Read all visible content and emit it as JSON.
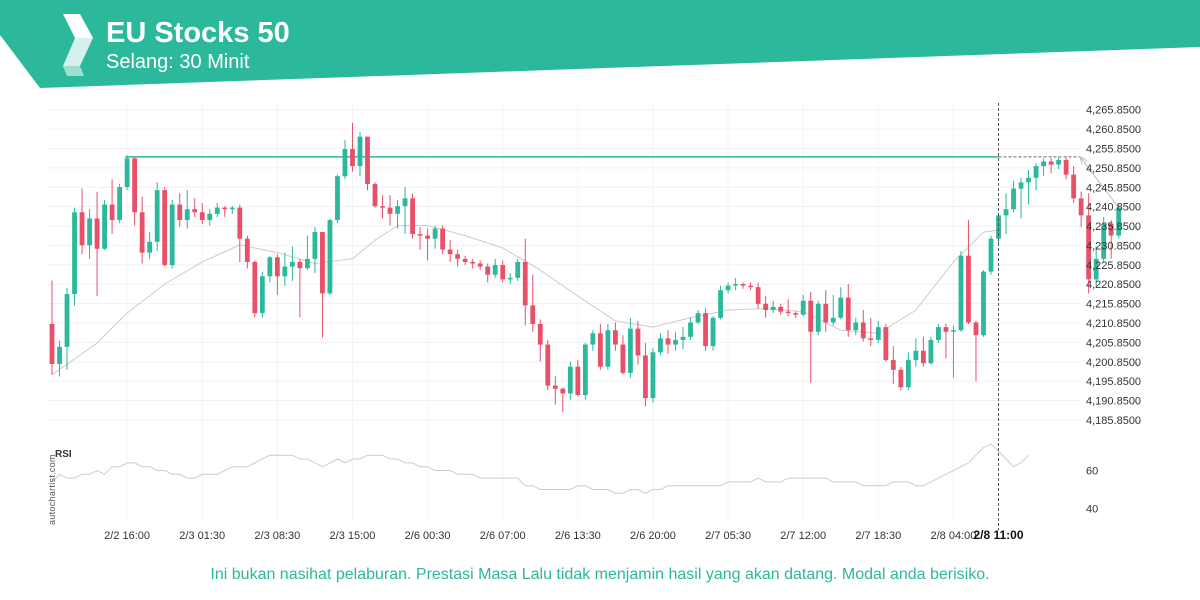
{
  "header": {
    "title": "EU Stocks 50",
    "subtitle": "Selang: 30 Minit",
    "brand_color": "#2bb89b",
    "logo_icon": "autochartist-logo-icon"
  },
  "disclaimer": "Ini bukan nasihat pelaburan. Prestasi Masa Lalu tidak menjamin hasil yang akan datang. Modal anda berisiko.",
  "watermark": "autochartist.com",
  "chart_data": {
    "type": "candlestick",
    "instrument": "EU Stocks 50",
    "interval": "30 Minit",
    "y_ticks": [
      "4,265.8500",
      "4,260.8500",
      "4,255.8500",
      "4,250.8500",
      "4,245.8500",
      "4,240.8500",
      "4,235.8500",
      "4,230.8500",
      "4,225.8500",
      "4,220.8500",
      "4,215.8500",
      "4,210.8500",
      "4,205.8500",
      "4,200.8500",
      "4,195.8500",
      "4,190.8500",
      "4,185.8500"
    ],
    "ylim": [
      4182.5,
      4266.8
    ],
    "x_ticks": [
      "2/2 16:00",
      "2/3 01:30",
      "2/3 08:30",
      "2/3 15:00",
      "2/6 00:30",
      "2/6 07:00",
      "2/6 13:30",
      "2/6 20:00",
      "2/7 05:30",
      "2/7 12:00",
      "2/7 18:30",
      "2/8 04:00"
    ],
    "x_tick_index": [
      10,
      20,
      30,
      40,
      50,
      60,
      70,
      80,
      90,
      100,
      110,
      120
    ],
    "highlight_x_label": "2/8 11:00",
    "highlight_index": 126,
    "resistance_level": 4253.7,
    "resistance_start_index": 10,
    "projection_target": 4253.7,
    "bull_color": "#2bb89b",
    "bear_color": "#e8506a",
    "candles": [
      [
        4210.6,
        4221.8,
        4197.5,
        4200.3
      ],
      [
        4200.3,
        4206.3,
        4197.1,
        4204.7
      ],
      [
        4204.7,
        4219.9,
        4198.8,
        4218.3
      ],
      [
        4218.3,
        4240.6,
        4215.3,
        4239.4
      ],
      [
        4239.4,
        4245.5,
        4228.6,
        4230.9
      ],
      [
        4230.9,
        4240.2,
        4227.4,
        4237.8
      ],
      [
        4237.8,
        4244.7,
        4217.8,
        4230.0
      ],
      [
        4230.0,
        4242.6,
        4229.6,
        4241.4
      ],
      [
        4241.4,
        4247.9,
        4233.8,
        4237.4
      ],
      [
        4237.4,
        4246.7,
        4236.6,
        4245.9
      ],
      [
        4245.9,
        4254.1,
        4245.1,
        4253.3
      ],
      [
        4253.3,
        4253.7,
        4236.0,
        4239.4
      ],
      [
        4239.4,
        4243.4,
        4226.2,
        4229.0
      ],
      [
        4229.0,
        4234.3,
        4227.4,
        4231.8
      ],
      [
        4231.8,
        4247.1,
        4229.4,
        4245.1
      ],
      [
        4245.1,
        4245.9,
        4225.4,
        4225.8
      ],
      [
        4225.8,
        4242.6,
        4224.9,
        4241.4
      ],
      [
        4241.4,
        4244.3,
        4235.6,
        4237.4
      ],
      [
        4237.4,
        4245.1,
        4235.2,
        4240.2
      ],
      [
        4240.2,
        4243.0,
        4238.2,
        4239.4
      ],
      [
        4239.4,
        4241.8,
        4236.4,
        4237.4
      ],
      [
        4237.4,
        4240.2,
        4236.0,
        4239.0
      ],
      [
        4239.0,
        4241.8,
        4238.2,
        4240.6
      ],
      [
        4240.6,
        4241.0,
        4238.2,
        4240.2
      ],
      [
        4240.2,
        4241.0,
        4239.0,
        4240.6
      ],
      [
        4240.6,
        4241.4,
        4226.6,
        4232.6
      ],
      [
        4232.6,
        4233.4,
        4224.9,
        4226.6
      ],
      [
        4226.6,
        4227.0,
        4212.3,
        4213.4
      ],
      [
        4213.4,
        4224.1,
        4212.3,
        4222.9
      ],
      [
        4222.9,
        4228.2,
        4221.3,
        4227.8
      ],
      [
        4227.8,
        4228.6,
        4218.1,
        4222.9
      ],
      [
        4222.9,
        4229.0,
        4220.5,
        4225.4
      ],
      [
        4225.4,
        4230.6,
        4221.7,
        4226.6
      ],
      [
        4226.6,
        4227.4,
        4212.3,
        4225.0
      ],
      [
        4225.0,
        4233.4,
        4224.5,
        4227.4
      ],
      [
        4227.4,
        4235.6,
        4223.7,
        4234.3
      ],
      [
        4234.3,
        4234.3,
        4207.1,
        4218.5
      ],
      [
        4218.5,
        4237.8,
        4218.1,
        4237.4
      ],
      [
        4237.4,
        4249.1,
        4236.6,
        4248.7
      ],
      [
        4248.7,
        4258.0,
        4247.9,
        4255.7
      ],
      [
        4255.7,
        4262.5,
        4249.9,
        4251.3
      ],
      [
        4251.3,
        4260.1,
        4248.7,
        4258.9
      ],
      [
        4258.9,
        4258.9,
        4245.1,
        4246.7
      ],
      [
        4246.7,
        4247.1,
        4240.6,
        4241.0
      ],
      [
        4241.0,
        4243.8,
        4237.8,
        4240.6
      ],
      [
        4240.6,
        4243.8,
        4236.0,
        4239.0
      ],
      [
        4239.0,
        4242.6,
        4235.2,
        4241.0
      ],
      [
        4241.0,
        4245.9,
        4233.9,
        4243.0
      ],
      [
        4243.0,
        4244.3,
        4232.6,
        4233.8
      ],
      [
        4233.8,
        4235.6,
        4229.8,
        4233.4
      ],
      [
        4233.4,
        4235.2,
        4227.0,
        4232.6
      ],
      [
        4232.6,
        4236.0,
        4230.0,
        4235.2
      ],
      [
        4235.2,
        4236.0,
        4228.6,
        4229.8
      ],
      [
        4229.8,
        4232.2,
        4226.6,
        4228.6
      ],
      [
        4228.6,
        4229.8,
        4225.4,
        4227.4
      ],
      [
        4227.4,
        4228.2,
        4225.8,
        4226.6
      ],
      [
        4226.6,
        4227.4,
        4224.9,
        4226.2
      ],
      [
        4226.2,
        4227.0,
        4224.5,
        4225.4
      ],
      [
        4225.4,
        4226.2,
        4221.3,
        4223.3
      ],
      [
        4223.3,
        4227.4,
        4222.5,
        4225.8
      ],
      [
        4225.8,
        4227.0,
        4221.3,
        4222.1
      ],
      [
        4222.1,
        4223.7,
        4220.9,
        4222.5
      ],
      [
        4222.5,
        4227.4,
        4221.7,
        4226.6
      ],
      [
        4226.6,
        4232.6,
        4210.2,
        4215.4
      ],
      [
        4215.4,
        4223.3,
        4208.6,
        4210.6
      ],
      [
        4210.6,
        4211.8,
        4200.9,
        4205.3
      ],
      [
        4205.3,
        4206.5,
        4193.5,
        4194.7
      ],
      [
        4194.7,
        4197.1,
        4189.8,
        4193.9
      ],
      [
        4193.9,
        4194.3,
        4187.8,
        4192.7
      ],
      [
        4192.7,
        4200.9,
        4191.1,
        4199.6
      ],
      [
        4199.6,
        4201.3,
        4191.9,
        4192.3
      ],
      [
        4192.3,
        4205.7,
        4191.1,
        4205.3
      ],
      [
        4205.3,
        4209.0,
        4203.7,
        4208.2
      ],
      [
        4208.2,
        4210.6,
        4198.8,
        4199.6
      ],
      [
        4199.6,
        4210.6,
        4198.8,
        4209.0
      ],
      [
        4209.0,
        4211.0,
        4203.7,
        4205.3
      ],
      [
        4205.3,
        4207.7,
        4197.6,
        4198.0
      ],
      [
        4198.0,
        4212.2,
        4196.8,
        4209.4
      ],
      [
        4209.4,
        4211.4,
        4200.1,
        4202.5
      ],
      [
        4202.5,
        4205.7,
        4189.4,
        4191.5
      ],
      [
        4191.5,
        4204.5,
        4190.3,
        4203.3
      ],
      [
        4203.3,
        4208.2,
        4202.5,
        4206.9
      ],
      [
        4206.9,
        4209.0,
        4202.9,
        4205.3
      ],
      [
        4205.3,
        4208.6,
        4203.7,
        4206.5
      ],
      [
        4206.5,
        4209.8,
        4204.1,
        4207.3
      ],
      [
        4207.3,
        4212.3,
        4206.5,
        4211.0
      ],
      [
        4211.0,
        4214.2,
        4210.6,
        4213.4
      ],
      [
        4213.4,
        4214.6,
        4203.7,
        4204.9
      ],
      [
        4204.9,
        4212.6,
        4203.7,
        4212.2
      ],
      [
        4212.2,
        4220.5,
        4211.8,
        4219.3
      ],
      [
        4219.3,
        4221.3,
        4218.5,
        4220.5
      ],
      [
        4220.5,
        4222.5,
        4219.3,
        4220.9
      ],
      [
        4220.9,
        4221.3,
        4219.7,
        4220.5
      ],
      [
        4220.5,
        4221.3,
        4219.3,
        4220.1
      ],
      [
        4220.1,
        4221.3,
        4214.6,
        4215.8
      ],
      [
        4215.8,
        4217.8,
        4212.2,
        4214.2
      ],
      [
        4214.2,
        4216.6,
        4213.4,
        4215.0
      ],
      [
        4215.0,
        4215.8,
        4213.0,
        4213.8
      ],
      [
        4213.8,
        4217.0,
        4212.6,
        4213.4
      ],
      [
        4213.4,
        4213.8,
        4212.2,
        4213.0
      ],
      [
        4213.0,
        4218.1,
        4212.6,
        4216.6
      ],
      [
        4216.6,
        4218.9,
        4195.5,
        4208.6
      ],
      [
        4208.6,
        4216.6,
        4207.7,
        4215.8
      ],
      [
        4215.8,
        4219.3,
        4208.6,
        4211.0
      ],
      [
        4211.0,
        4218.1,
        4210.2,
        4212.2
      ],
      [
        4212.2,
        4220.1,
        4211.8,
        4217.4
      ],
      [
        4217.4,
        4220.9,
        4207.3,
        4209.0
      ],
      [
        4209.0,
        4212.2,
        4207.7,
        4211.0
      ],
      [
        4211.0,
        4214.2,
        4206.1,
        4206.9
      ],
      [
        4206.9,
        4212.2,
        4204.9,
        4206.5
      ],
      [
        4206.5,
        4211.4,
        4205.7,
        4209.8
      ],
      [
        4209.8,
        4210.6,
        4200.9,
        4201.3
      ],
      [
        4201.3,
        4204.9,
        4195.1,
        4198.8
      ],
      [
        4198.8,
        4199.6,
        4193.5,
        4194.3
      ],
      [
        4194.3,
        4203.3,
        4193.5,
        4201.3
      ],
      [
        4201.3,
        4206.9,
        4199.6,
        4203.7
      ],
      [
        4203.7,
        4207.3,
        4199.6,
        4200.5
      ],
      [
        4200.5,
        4207.3,
        4200.1,
        4206.5
      ],
      [
        4206.5,
        4210.6,
        4205.7,
        4209.8
      ],
      [
        4209.8,
        4210.6,
        4201.7,
        4208.6
      ],
      [
        4208.6,
        4210.2,
        4196.8,
        4209.0
      ],
      [
        4209.0,
        4229.4,
        4208.6,
        4228.2
      ],
      [
        4228.2,
        4237.4,
        4210.6,
        4211.0
      ],
      [
        4211.0,
        4211.4,
        4195.9,
        4207.7
      ],
      [
        4207.7,
        4224.5,
        4207.3,
        4224.1
      ],
      [
        4224.1,
        4233.4,
        4223.3,
        4232.6
      ],
      [
        4232.6,
        4239.4,
        4231.4,
        4238.6
      ],
      [
        4238.6,
        4244.3,
        4233.8,
        4240.2
      ],
      [
        4240.2,
        4247.5,
        4239.4,
        4245.5
      ],
      [
        4245.5,
        4248.3,
        4237.8,
        4247.1
      ],
      [
        4247.1,
        4250.3,
        4241.4,
        4248.3
      ],
      [
        4248.3,
        4252.1,
        4245.1,
        4251.3
      ],
      [
        4251.3,
        4253.3,
        4248.7,
        4252.5
      ],
      [
        4252.5,
        4253.3,
        4249.5,
        4251.7
      ],
      [
        4251.7,
        4253.7,
        4250.5,
        4252.9
      ],
      [
        4252.9,
        4253.7,
        4247.9,
        4249.1
      ],
      [
        4249.1,
        4251.3,
        4241.8,
        4243.0
      ],
      [
        4243.0,
        4244.7,
        4235.6,
        4238.6
      ],
      [
        4238.6,
        4244.3,
        4218.5,
        4222.1
      ],
      [
        4222.1,
        4230.6,
        4220.1,
        4227.4
      ],
      [
        4227.4,
        4238.2,
        4226.6,
        4236.4
      ],
      [
        4236.4,
        4237.4,
        4227.4,
        4233.4
      ],
      [
        4233.4,
        4241.4,
        4232.6,
        4240.6
      ]
    ],
    "ma": [
      [
        0,
        4197.5
      ],
      [
        6,
        4205.7
      ],
      [
        10,
        4213.4
      ],
      [
        15,
        4220.9
      ],
      [
        20,
        4226.6
      ],
      [
        25,
        4231.0
      ],
      [
        30,
        4229.0
      ],
      [
        35,
        4226.2
      ],
      [
        40,
        4227.4
      ],
      [
        43,
        4232.2
      ],
      [
        46,
        4236.0
      ],
      [
        50,
        4236.0
      ],
      [
        55,
        4233.4
      ],
      [
        60,
        4230.2
      ],
      [
        65,
        4224.5
      ],
      [
        70,
        4217.8
      ],
      [
        75,
        4211.4
      ],
      [
        80,
        4209.8
      ],
      [
        85,
        4212.2
      ],
      [
        90,
        4214.2
      ],
      [
        95,
        4214.6
      ],
      [
        100,
        4213.8
      ],
      [
        105,
        4209.0
      ],
      [
        110,
        4208.2
      ],
      [
        115,
        4214.2
      ],
      [
        120,
        4226.6
      ],
      [
        124,
        4234.3
      ],
      [
        126,
        4234.8
      ]
    ],
    "rsi": {
      "label": "RSI",
      "ticks": [
        60,
        40
      ],
      "ylim": [
        34,
        76
      ],
      "values": [
        54,
        58,
        56,
        56,
        58,
        58,
        60,
        58,
        62,
        62,
        64,
        64,
        62,
        62,
        60,
        60,
        58,
        58,
        56,
        56,
        58,
        58,
        58,
        60,
        62,
        62,
        62,
        64,
        66,
        68,
        68,
        68,
        68,
        66,
        66,
        64,
        62,
        64,
        66,
        64,
        66,
        66,
        68,
        68,
        68,
        66,
        66,
        64,
        64,
        62,
        62,
        60,
        60,
        60,
        58,
        58,
        58,
        56,
        56,
        56,
        56,
        56,
        56,
        52,
        52,
        50,
        50,
        50,
        50,
        50,
        52,
        52,
        50,
        50,
        50,
        48,
        48,
        50,
        50,
        48,
        50,
        50,
        52,
        52,
        52,
        52,
        52,
        52,
        52,
        52,
        54,
        54,
        54,
        54,
        56,
        54,
        54,
        54,
        56,
        56,
        56,
        56,
        56,
        56,
        54,
        54,
        54,
        54,
        52,
        52,
        52,
        52,
        54,
        54,
        54,
        52,
        52,
        54,
        56,
        58,
        60,
        62,
        64,
        68,
        72,
        74,
        70,
        66,
        62,
        64,
        68
      ]
    }
  }
}
